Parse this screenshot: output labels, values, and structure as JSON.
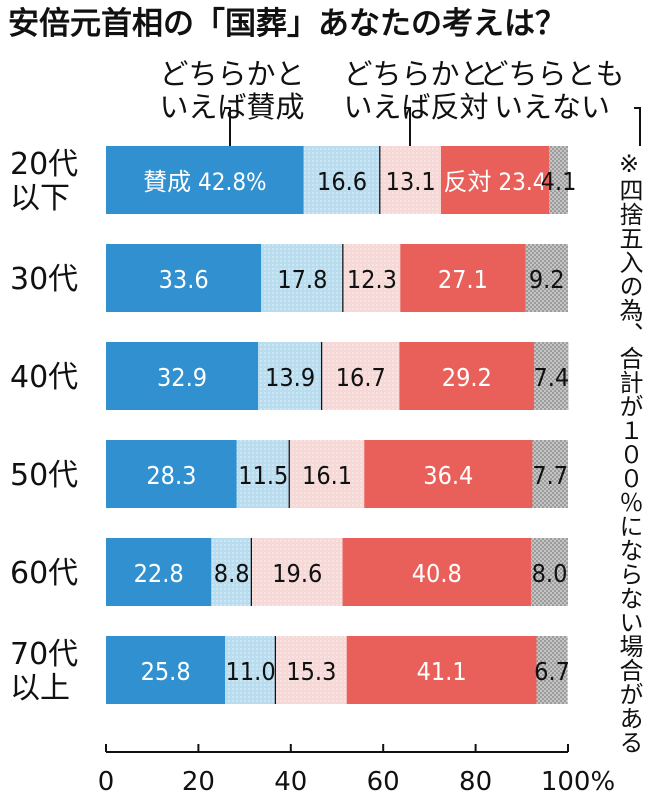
{
  "title": "安倍元首相の「国葬」あなたの考えは？",
  "note": "※四捨五入の為、合計が１００％にならない場合がある",
  "colors": {
    "favor": "#3190cf",
    "somewhat_favor": "#b9dcef",
    "somewhat_oppose": "#f6d8d7",
    "oppose": "#e9605a",
    "neither": "#bdbdbd"
  },
  "chart_data": {
    "type": "bar",
    "orientation": "horizontal",
    "stacked": true,
    "categories": [
      [
        "20代",
        "以下"
      ],
      [
        "30代"
      ],
      [
        "40代"
      ],
      [
        "50代"
      ],
      [
        "60代"
      ],
      [
        "70代",
        "以上"
      ]
    ],
    "series": [
      {
        "key": "favor",
        "name": "賛成",
        "values": [
          42.8,
          33.6,
          32.9,
          28.3,
          22.8,
          25.8
        ],
        "labels": [
          "賛成 42.8%",
          "33.6",
          "32.9",
          "28.3",
          "22.8",
          "25.8"
        ]
      },
      {
        "key": "somewhat_favor",
        "name": "どちらかといえば賛成",
        "values": [
          16.6,
          17.8,
          13.9,
          11.5,
          8.8,
          11.0
        ],
        "labels": [
          "16.6",
          "17.8",
          "13.9",
          "11.5",
          "8.8",
          "11.0"
        ]
      },
      {
        "key": "somewhat_oppose",
        "name": "どちらかといえば反対",
        "values": [
          13.1,
          12.3,
          16.7,
          16.1,
          19.6,
          15.3
        ],
        "labels": [
          "13.1",
          "12.3",
          "16.7",
          "16.1",
          "19.6",
          "15.3"
        ]
      },
      {
        "key": "oppose",
        "name": "反対",
        "values": [
          23.4,
          27.1,
          29.2,
          36.4,
          40.8,
          41.1
        ],
        "labels": [
          "反対 23.4",
          "27.1",
          "29.2",
          "36.4",
          "40.8",
          "41.1"
        ]
      },
      {
        "key": "neither",
        "name": "どちらともいえない",
        "values": [
          4.1,
          9.2,
          7.4,
          7.7,
          8.0,
          6.7
        ],
        "labels": [
          "4.1",
          "9.2",
          "7.4",
          "7.7",
          "8.0",
          "6.7"
        ]
      }
    ],
    "legend": [
      {
        "key": "somewhat_favor",
        "lines": [
          "どちらかと",
          "いえば賛成"
        ]
      },
      {
        "key": "somewhat_oppose",
        "lines": [
          "どちらかと",
          "いえば反対"
        ]
      },
      {
        "key": "neither",
        "lines": [
          "どちらとも",
          "いえない"
        ]
      }
    ],
    "xlim": [
      0,
      100
    ],
    "xticks": [
      "0",
      "20",
      "40",
      "60",
      "80",
      "100%"
    ],
    "xtick_values": [
      0,
      20,
      40,
      60,
      80,
      100
    ],
    "grid": false,
    "legend_placement": "top"
  }
}
